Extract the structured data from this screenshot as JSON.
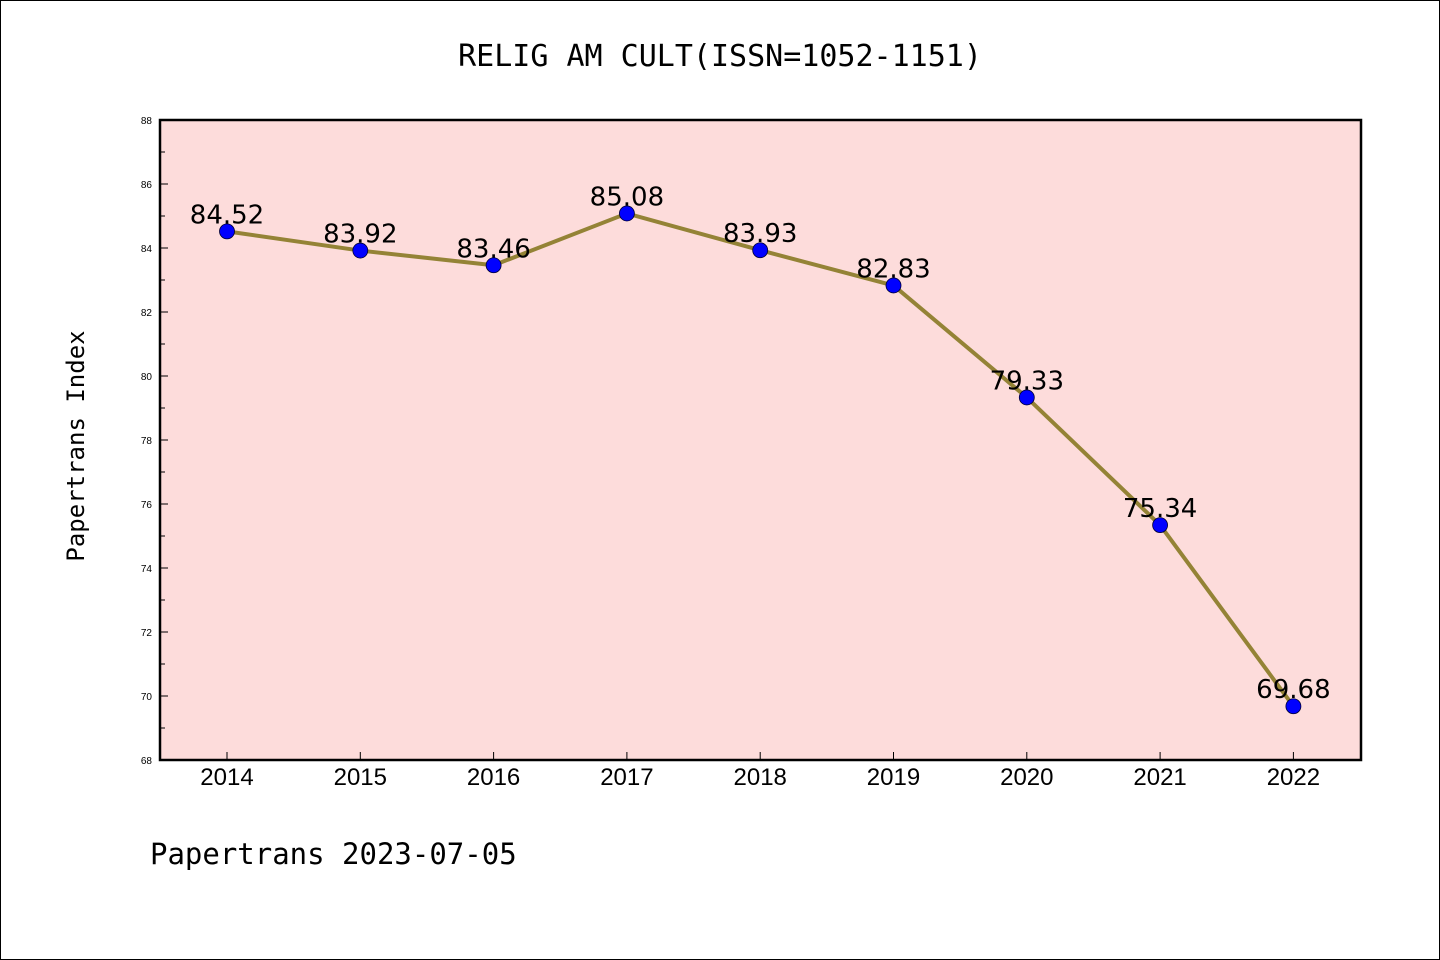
{
  "footer": "Papertrans 2023-07-05",
  "chart_data": {
    "type": "line",
    "title": "RELIG AM CULT(ISSN=1052-1151)",
    "ylabel": "Papertrans Index",
    "xlabel": "",
    "categories": [
      "2014",
      "2015",
      "2016",
      "2017",
      "2018",
      "2019",
      "2020",
      "2021",
      "2022"
    ],
    "values": [
      84.52,
      83.92,
      83.46,
      85.08,
      83.93,
      82.83,
      79.33,
      75.34,
      69.68
    ],
    "data_labels": [
      "84.52",
      "83.92",
      "83.46",
      "85.08",
      "83.93",
      "82.83",
      "79.33",
      "75.34",
      "69.68"
    ],
    "ylim": [
      68,
      88
    ],
    "yticks": [
      "68",
      "70",
      "72",
      "74",
      "76",
      "78",
      "80",
      "82",
      "84",
      "86",
      "88"
    ],
    "grid": false,
    "colors": {
      "plot_background": "#fddcdb",
      "line": "#948336",
      "marker": "#0000ff",
      "axes": "#000000"
    }
  }
}
